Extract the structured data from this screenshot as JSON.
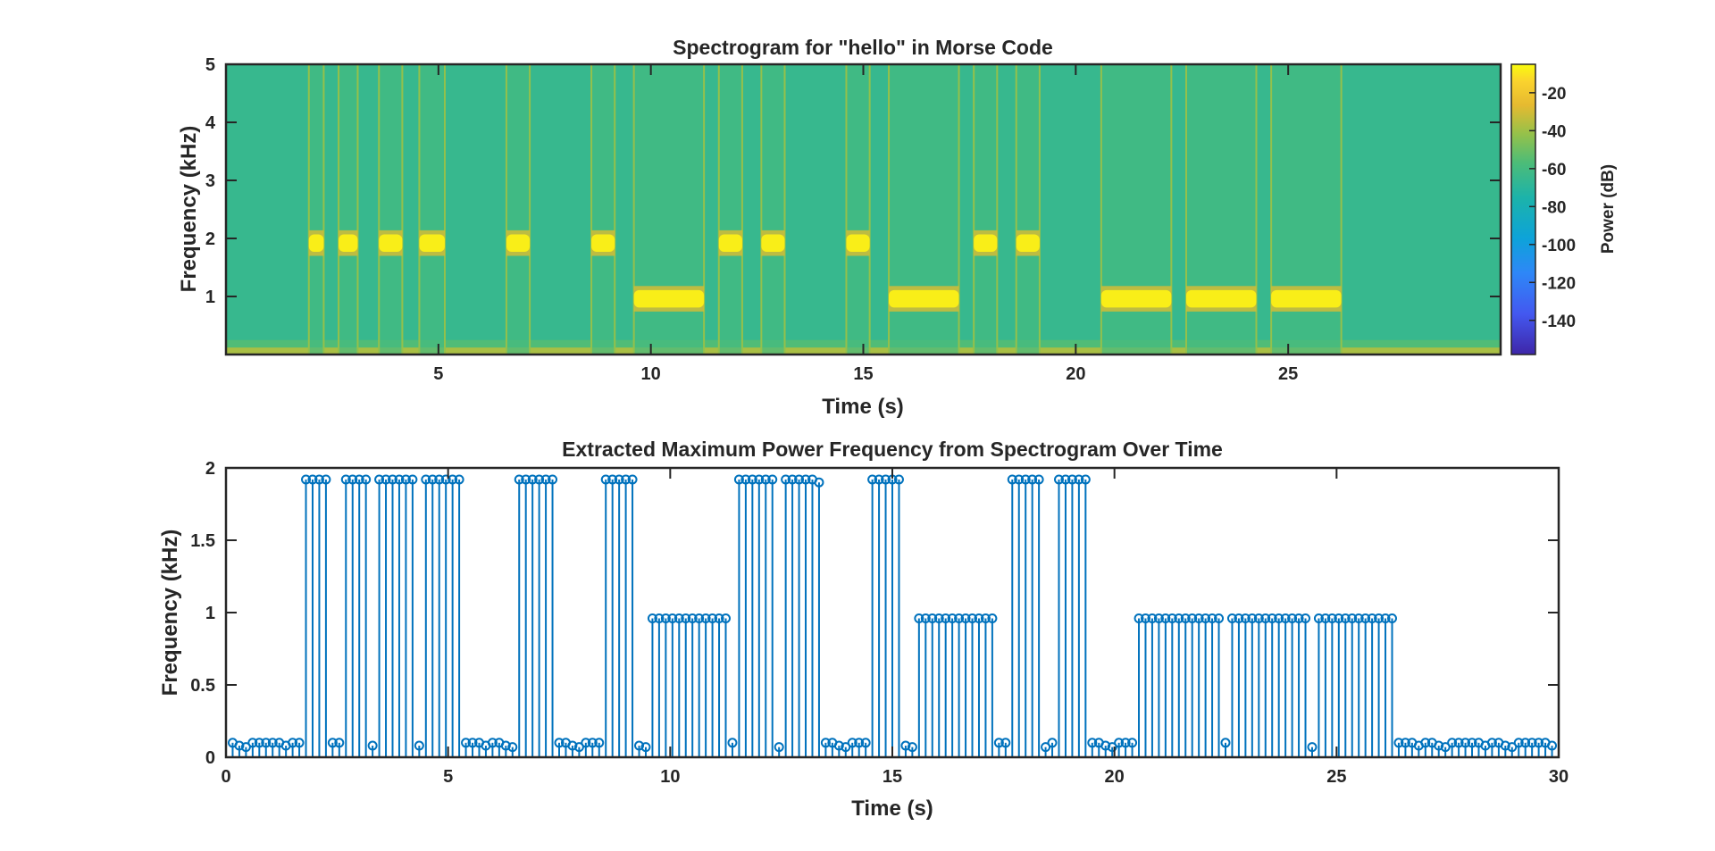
{
  "chart_data": [
    {
      "type": "heatmap",
      "title": "Spectrogram for \"hello\" in Morse Code",
      "xlabel": "Time (s)",
      "ylabel": "Frequency (kHz)",
      "xlim": [
        0,
        30
      ],
      "ylim": [
        0,
        5
      ],
      "xticks": [
        5,
        10,
        15,
        20,
        25
      ],
      "yticks": [
        1,
        2,
        3,
        4,
        5
      ],
      "background_power_db": -65,
      "colorbar": {
        "label": "Power (dB)",
        "range": [
          -158,
          -5
        ],
        "ticks": [
          -20,
          -40,
          -60,
          -80,
          -100,
          -120,
          -140
        ]
      },
      "tone_segments": [
        {
          "t0": 1.95,
          "t1": 2.3,
          "freq_khz": 1.92
        },
        {
          "t0": 2.65,
          "t1": 3.1,
          "freq_khz": 1.92
        },
        {
          "t0": 3.6,
          "t1": 4.15,
          "freq_khz": 1.92
        },
        {
          "t0": 4.55,
          "t1": 5.15,
          "freq_khz": 1.92
        },
        {
          "t0": 6.6,
          "t1": 7.15,
          "freq_khz": 1.92
        },
        {
          "t0": 8.6,
          "t1": 9.15,
          "freq_khz": 1.92
        },
        {
          "t0": 9.6,
          "t1": 11.25,
          "freq_khz": 0.96
        },
        {
          "t0": 11.6,
          "t1": 12.15,
          "freq_khz": 1.92
        },
        {
          "t0": 12.6,
          "t1": 13.15,
          "freq_khz": 1.92
        },
        {
          "t0": 14.6,
          "t1": 15.15,
          "freq_khz": 1.92
        },
        {
          "t0": 15.6,
          "t1": 17.25,
          "freq_khz": 0.96
        },
        {
          "t0": 17.6,
          "t1": 18.15,
          "freq_khz": 1.92
        },
        {
          "t0": 18.6,
          "t1": 19.15,
          "freq_khz": 1.92
        },
        {
          "t0": 20.6,
          "t1": 22.25,
          "freq_khz": 0.96
        },
        {
          "t0": 22.6,
          "t1": 24.25,
          "freq_khz": 0.96
        },
        {
          "t0": 24.6,
          "t1": 26.25,
          "freq_khz": 0.96
        }
      ]
    },
    {
      "type": "stem",
      "title": "Extracted Maximum Power Frequency from Spectrogram Over Time",
      "xlabel": "Time (s)",
      "ylabel": "Frequency (kHz)",
      "xlim": [
        0,
        30
      ],
      "ylim": [
        0,
        2
      ],
      "xticks": [
        0,
        5,
        10,
        15,
        20,
        25,
        30
      ],
      "yticks": [
        0,
        0.5,
        1,
        1.5,
        2
      ],
      "color": "#0072BD",
      "sample_step_s": 0.15,
      "tone_segments": [
        {
          "t0": 1.8,
          "t1": 2.25,
          "value": 1.92
        },
        {
          "t0": 2.7,
          "t1": 3.15,
          "value": 1.92
        },
        {
          "t0": 3.45,
          "t1": 4.2,
          "value": 1.92
        },
        {
          "t0": 4.5,
          "t1": 5.25,
          "value": 1.92
        },
        {
          "t0": 6.6,
          "t1": 7.35,
          "value": 1.92
        },
        {
          "t0": 8.55,
          "t1": 9.15,
          "value": 1.92
        },
        {
          "t0": 9.6,
          "t1": 11.25,
          "value": 0.96
        },
        {
          "t0": 11.55,
          "t1": 12.3,
          "value": 1.92
        },
        {
          "t0": 12.6,
          "t1": 13.2,
          "value": 1.92
        },
        {
          "t0": 13.35,
          "t1": 13.35,
          "value": 1.9
        },
        {
          "t0": 14.55,
          "t1": 15.15,
          "value": 1.92
        },
        {
          "t0": 15.6,
          "t1": 17.25,
          "value": 0.96
        },
        {
          "t0": 17.7,
          "t1": 18.3,
          "value": 1.92
        },
        {
          "t0": 18.75,
          "t1": 19.35,
          "value": 1.92
        },
        {
          "t0": 20.55,
          "t1": 22.35,
          "value": 0.96
        },
        {
          "t0": 22.65,
          "t1": 24.3,
          "value": 0.96
        },
        {
          "t0": 24.6,
          "t1": 26.25,
          "value": 0.96
        }
      ],
      "baseline_values": [
        0.1,
        0.1,
        0.08,
        0.07,
        0.1,
        0.1,
        0.1,
        0.1,
        0.1,
        0.08
      ]
    }
  ]
}
